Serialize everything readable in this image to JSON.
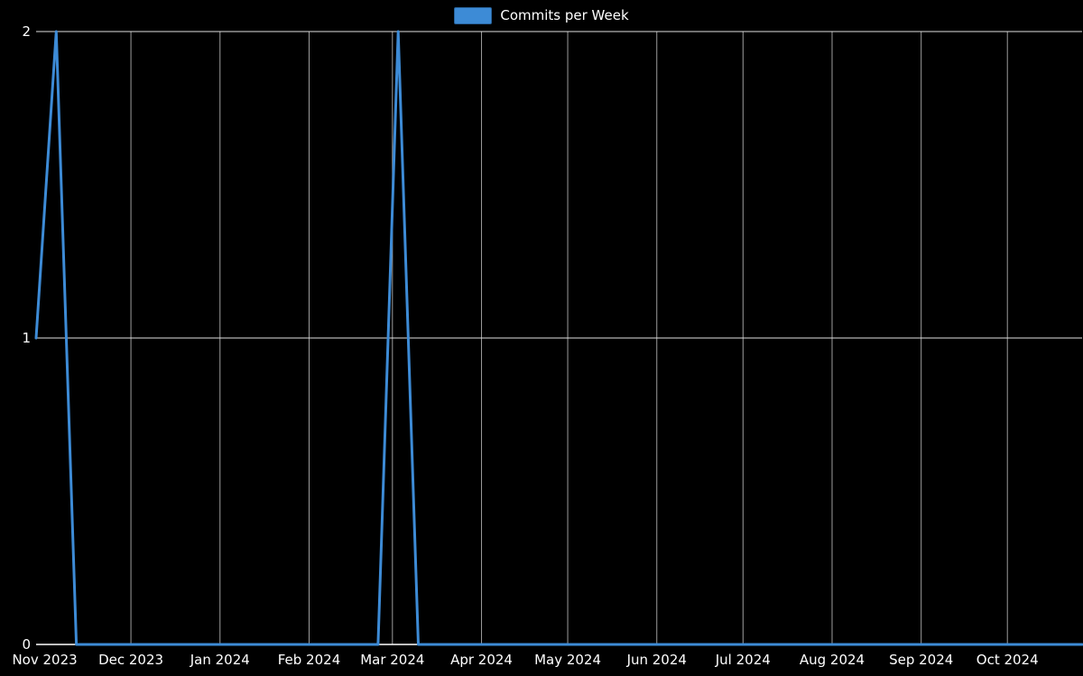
{
  "legend": {
    "label": "Commits per Week",
    "swatch_color": "#3d8bd6",
    "swatch_border": "#28639c"
  },
  "chart_data": {
    "type": "line",
    "title": "Commits per Week",
    "series_name": "Commits per Week",
    "legend_position": "top-center",
    "grid": true,
    "ylim": [
      0,
      2
    ],
    "yticks": [
      0,
      1,
      2
    ],
    "x_domain": [
      "2023-10-29",
      "2024-10-27"
    ],
    "months": [
      {
        "label": "Nov 2023",
        "date": "2023-11-01",
        "grid": false
      },
      {
        "label": "Dec 2023",
        "date": "2023-12-01",
        "grid": true
      },
      {
        "label": "Jan 2024",
        "date": "2024-01-01",
        "grid": true
      },
      {
        "label": "Feb 2024",
        "date": "2024-02-01",
        "grid": true
      },
      {
        "label": "Mar 2024",
        "date": "2024-03-01",
        "grid": true
      },
      {
        "label": "Apr 2024",
        "date": "2024-04-01",
        "grid": true
      },
      {
        "label": "May 2024",
        "date": "2024-05-01",
        "grid": true
      },
      {
        "label": "Jun 2024",
        "date": "2024-06-01",
        "grid": true
      },
      {
        "label": "Jul 2024",
        "date": "2024-07-01",
        "grid": true
      },
      {
        "label": "Aug 2024",
        "date": "2024-08-01",
        "grid": true
      },
      {
        "label": "Sep 2024",
        "date": "2024-09-01",
        "grid": true
      },
      {
        "label": "Oct 2024",
        "date": "2024-10-01",
        "grid": true
      }
    ],
    "dates": [
      "2023-10-29",
      "2023-11-05",
      "2023-11-12",
      "2023-11-19",
      "2023-11-26",
      "2023-12-03",
      "2023-12-10",
      "2023-12-17",
      "2023-12-24",
      "2023-12-31",
      "2024-01-07",
      "2024-01-14",
      "2024-01-21",
      "2024-01-28",
      "2024-02-04",
      "2024-02-11",
      "2024-02-18",
      "2024-02-25",
      "2024-03-03",
      "2024-03-10",
      "2024-03-17",
      "2024-03-24",
      "2024-03-31",
      "2024-04-07",
      "2024-04-14",
      "2024-04-21",
      "2024-04-28",
      "2024-05-05",
      "2024-05-12",
      "2024-05-19",
      "2024-05-26",
      "2024-06-02",
      "2024-06-09",
      "2024-06-16",
      "2024-06-23",
      "2024-06-30",
      "2024-07-07",
      "2024-07-14",
      "2024-07-21",
      "2024-07-28",
      "2024-08-04",
      "2024-08-11",
      "2024-08-18",
      "2024-08-25",
      "2024-09-01",
      "2024-09-08",
      "2024-09-15",
      "2024-09-22",
      "2024-09-29",
      "2024-10-06",
      "2024-10-13",
      "2024-10-20",
      "2024-10-27"
    ],
    "values": [
      1,
      2,
      0,
      0,
      0,
      0,
      0,
      0,
      0,
      0,
      0,
      0,
      0,
      0,
      0,
      0,
      0,
      0,
      2,
      0,
      0,
      0,
      0,
      0,
      0,
      0,
      0,
      0,
      0,
      0,
      0,
      0,
      0,
      0,
      0,
      0,
      0,
      0,
      0,
      0,
      0,
      0,
      0,
      0,
      0,
      0,
      0,
      0,
      0,
      0,
      0,
      0,
      0
    ],
    "colors": {
      "line": "#3d8bd6",
      "grid_horizontal": "#e0e0e0",
      "grid_vertical": "#9e9e9e",
      "axis": "#ffffff",
      "text": "#ffffff",
      "background": "#000000"
    }
  }
}
